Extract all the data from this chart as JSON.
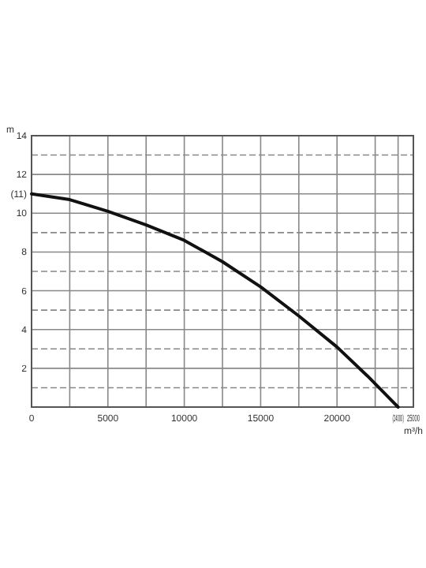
{
  "chart_data": {
    "type": "line",
    "xlabel": "m³/h",
    "ylabel": "m",
    "x": [
      0,
      2500,
      5000,
      7500,
      10000,
      12500,
      15000,
      17500,
      20000,
      22000,
      24000
    ],
    "series": [
      {
        "color": "#111111",
        "values": [
          11,
          10.7,
          10.1,
          9.4,
          8.6,
          7.5,
          6.2,
          4.7,
          3.1,
          1.6,
          0
        ]
      }
    ],
    "xlim": [
      0,
      25000
    ],
    "ylim": [
      0,
      14
    ],
    "xticks": [
      0,
      {
        "value": 2500,
        "label": null
      },
      5000,
      {
        "value": 7500,
        "label": null
      },
      10000,
      {
        "value": 12500,
        "label": null
      },
      15000,
      {
        "value": 17500,
        "label": null
      },
      20000,
      {
        "value": 22500,
        "label": null
      },
      {
        "value": 24000,
        "label": "(24000)"
      },
      25000
    ],
    "yticks": [
      {
        "value": 1,
        "label": null
      },
      2,
      {
        "value": 3,
        "label": null
      },
      4,
      {
        "value": 5,
        "label": null
      },
      6,
      {
        "value": 7,
        "label": null
      },
      8,
      {
        "value": 9,
        "label": null
      },
      10,
      {
        "value": 11,
        "label": "(11)"
      },
      12,
      {
        "value": 13,
        "label": null
      },
      14
    ],
    "grid": true,
    "marker": "none",
    "line_style": "solid"
  }
}
